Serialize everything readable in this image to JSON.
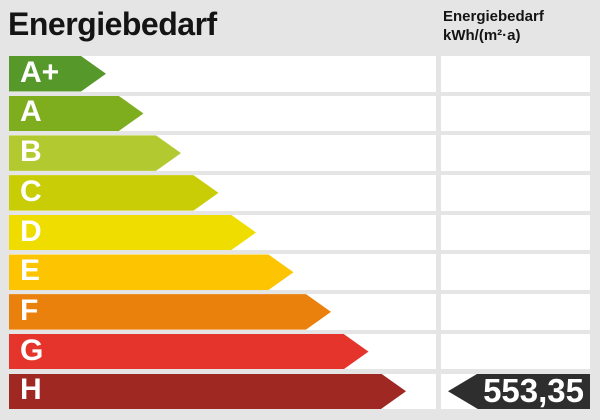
{
  "title": "Energiebedarf",
  "unit_header": {
    "line1": "Energiebedarf",
    "line2": "kWh/(m²·a)"
  },
  "colors": {
    "background": "#e5e5e5",
    "track": "#ffffff",
    "value_arrow": "#2e2e2e",
    "value_text": "#ffffff",
    "title_text": "#141414"
  },
  "chart_data": {
    "type": "bar",
    "title": "Energiebedarf",
    "unit": "kWh/(m²·a)",
    "orientation": "horizontal",
    "categories": [
      "A+",
      "A",
      "B",
      "C",
      "D",
      "E",
      "F",
      "G",
      "H"
    ],
    "series": [
      {
        "name": "rating-scale-arrow-lengths-px",
        "values": [
          97,
          134.5,
          172,
          209.5,
          247,
          284.5,
          322,
          359.5,
          397
        ]
      }
    ],
    "colors": [
      "#56992a",
      "#7ead1e",
      "#b3c930",
      "#c8cd06",
      "#f0dd00",
      "#fdc402",
      "#ea810c",
      "#e5342b",
      "#9f2823"
    ],
    "value_marker": {
      "value": 553.35,
      "display": "553,35",
      "category": "H",
      "unit": "kWh/(m²·a)"
    },
    "legend": false,
    "grid": false
  }
}
